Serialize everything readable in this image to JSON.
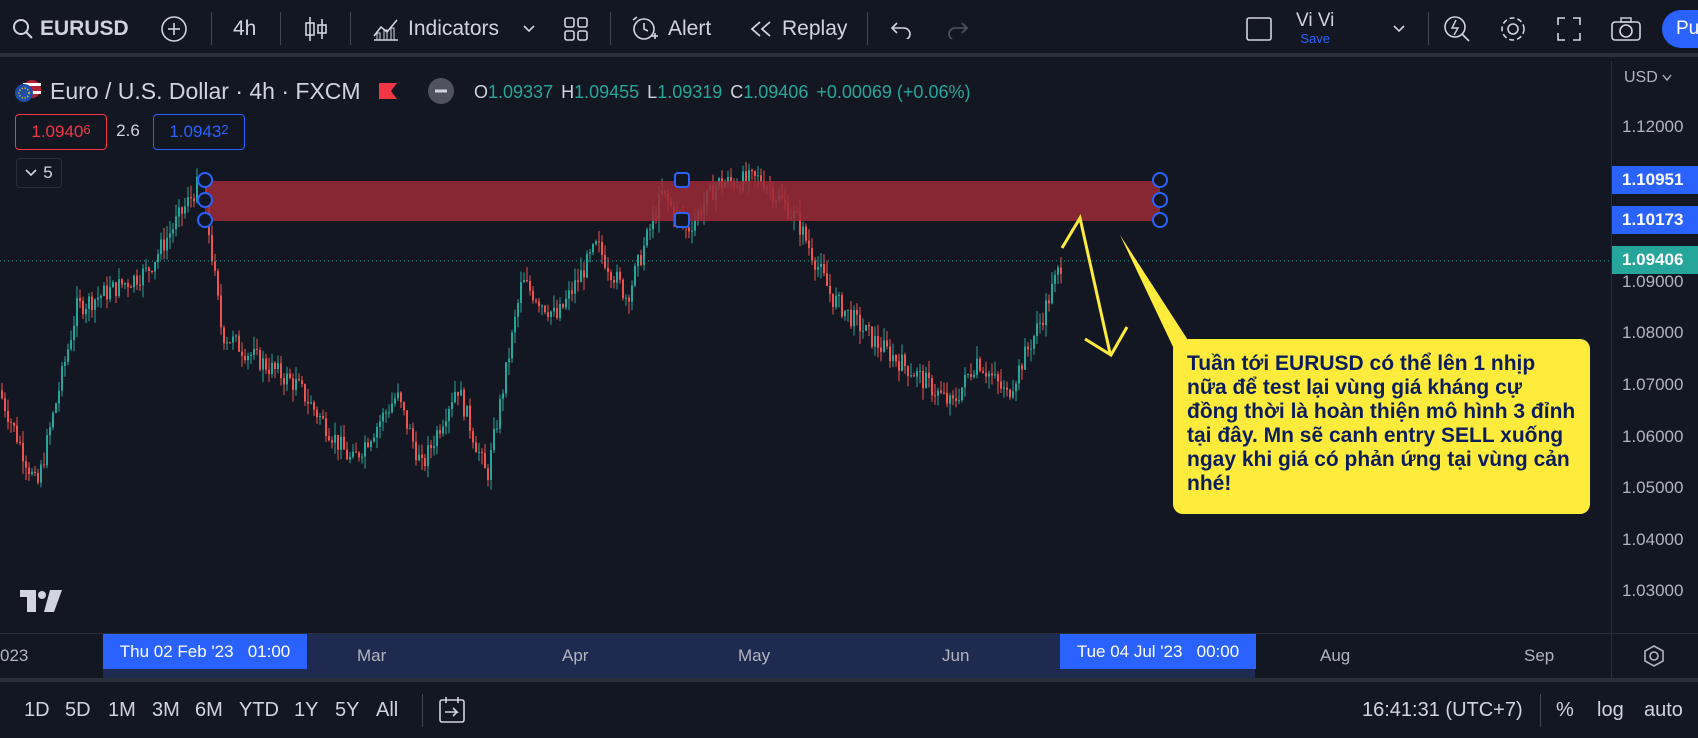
{
  "toolbar": {
    "symbol": "EURUSD",
    "interval": "4h",
    "indicators_label": "Indicators",
    "alert_label": "Alert",
    "replay_label": "Replay",
    "layout_name": "Vi Vi",
    "save_label": "Save",
    "publish_label": "Pu"
  },
  "legend": {
    "title": "Euro / U.S. Dollar · 4h · FXCM",
    "o_key": "O",
    "o_val": "1.09337",
    "h_key": "H",
    "h_val": "1.09455",
    "l_key": "L",
    "l_val": "1.09319",
    "c_key": "C",
    "c_val": "1.09406",
    "change": "+0.00069 (+0.06%)",
    "sell_price": "1.0940",
    "sell_price_small": "6",
    "spread": "2.6",
    "buy_price": "1.0943",
    "buy_price_small": "2",
    "collapse_count": "5"
  },
  "price_axis": {
    "currency": "USD",
    "labels": [
      "1.12000",
      "1.09000",
      "1.08000",
      "1.07000",
      "1.06000",
      "1.05000",
      "1.04000",
      "1.03000"
    ],
    "tag_top": "1.10951",
    "tag_bottom": "1.10173",
    "tag_last": "1.09406"
  },
  "time_axis": {
    "year_fragment": "023",
    "cursor_start": "Thu 02 Feb '23   01:00",
    "labels": [
      "Mar",
      "Apr",
      "May",
      "Jun",
      "Aug",
      "Sep"
    ],
    "cursor_end": "Tue 04 Jul '23   00:00"
  },
  "bottom_bar": {
    "ranges": [
      "1D",
      "5D",
      "1M",
      "3M",
      "6M",
      "YTD",
      "1Y",
      "5Y",
      "All"
    ],
    "clock": "16:41:31 (UTC+7)",
    "percent_label": "%",
    "log_label": "log",
    "auto_label": "auto"
  },
  "annotation": {
    "text": "Tuần tới EURUSD có thể lên 1 nhịp nữa để test lại vùng giá kháng cự đồng thời là hoàn thiện mô hình 3 đỉnh tại đây. Mn sẽ canh entry SELL xuống ngay khi giá có phản ứng tại vùng cản nhé!"
  },
  "zone": {
    "top_price": 1.10951,
    "bottom_price": 1.10173,
    "color": "#9c2a36"
  },
  "colors": {
    "up": "#26a69a",
    "down": "#ef5350",
    "accent": "#2962ff",
    "callout": "#ffeb3b",
    "last_price": "#26a69a"
  }
}
